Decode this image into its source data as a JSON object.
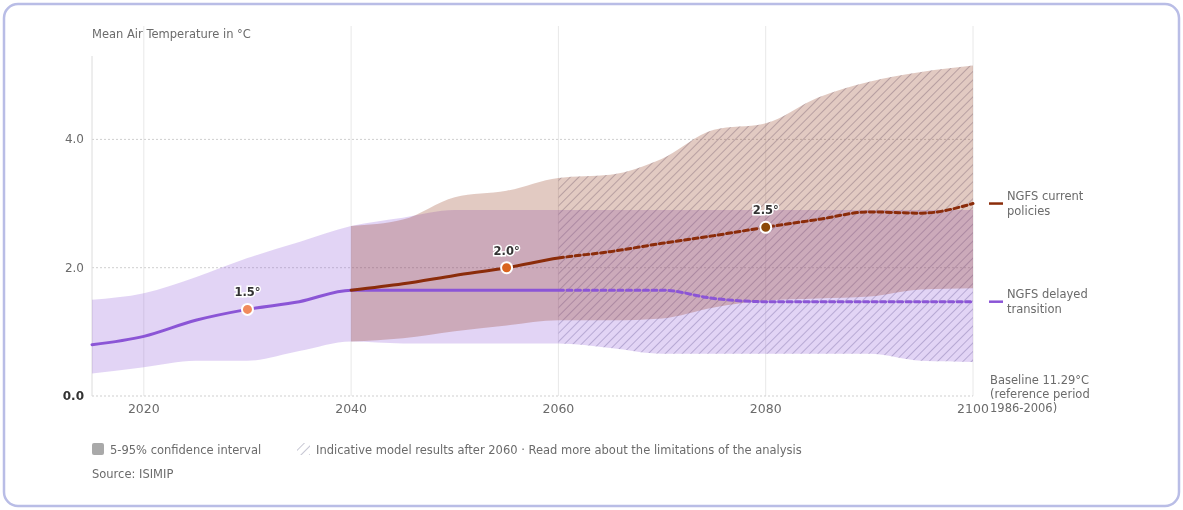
{
  "chart_data": {
    "type": "line",
    "ylabel": "Mean Air Temperature in °C",
    "xlim": [
      2015,
      2100
    ],
    "xticks": [
      2020,
      2040,
      2060,
      2080,
      2100
    ],
    "ylim": [
      0,
      5.3
    ],
    "yticks": [
      {
        "value": 0,
        "label": "0.0"
      },
      {
        "value": 2,
        "label": "2.0"
      },
      {
        "value": 4,
        "label": "4.0"
      }
    ],
    "grid": true,
    "legend": "right",
    "series": [
      {
        "name": "NGFS delayed transition",
        "color": "#8b55d6",
        "line_style": "dashed",
        "x": [
          2015,
          2020,
          2025,
          2030,
          2035,
          2040,
          2045,
          2050,
          2055,
          2060,
          2065,
          2070,
          2075,
          2080,
          2085,
          2090,
          2095,
          2100
        ],
        "values": [
          0.8,
          0.93,
          1.18,
          1.35,
          1.47,
          1.65,
          1.65,
          1.65,
          1.65,
          1.65,
          1.65,
          1.65,
          1.52,
          1.47,
          1.47,
          1.47,
          1.47,
          1.47
        ],
        "lower": [
          0.35,
          0.45,
          0.55,
          0.55,
          0.7,
          0.85,
          0.82,
          0.82,
          0.82,
          0.82,
          0.75,
          0.66,
          0.66,
          0.66,
          0.66,
          0.66,
          0.55,
          0.53
        ],
        "upper": [
          1.5,
          1.6,
          1.85,
          2.15,
          2.4,
          2.65,
          2.78,
          2.9,
          2.9,
          2.9,
          2.9,
          2.9,
          2.9,
          2.9,
          2.9,
          2.9,
          2.9,
          2.9
        ]
      },
      {
        "name": "NGFS current policies",
        "color": "#8b2c0a",
        "line_style": "dashed",
        "x": [
          2040,
          2045,
          2050,
          2055,
          2060,
          2065,
          2070,
          2075,
          2080,
          2085,
          2090,
          2095,
          2100
        ],
        "values": [
          1.65,
          1.75,
          1.88,
          2.0,
          2.15,
          2.25,
          2.38,
          2.5,
          2.63,
          2.75,
          2.87,
          2.85,
          3.0
        ],
        "lower": [
          0.85,
          0.9,
          1.01,
          1.1,
          1.18,
          1.18,
          1.21,
          1.38,
          1.49,
          1.52,
          1.55,
          1.66,
          1.68
        ],
        "upper": [
          2.65,
          2.75,
          3.1,
          3.2,
          3.4,
          3.45,
          3.7,
          4.15,
          4.25,
          4.65,
          4.9,
          5.05,
          5.15
        ]
      },
      {
        "type": "scatter",
        "x": [
          2030,
          2055,
          2080
        ],
        "values": [
          1.35,
          2.0,
          2.63
        ],
        "colors": [
          "#f08a5d",
          "#d9641e",
          "#8b4a0a"
        ]
      }
    ],
    "bands": [
      {
        "axis": "x",
        "from": 2060,
        "to": 2100,
        "label": "Indicative model results after 2060 · Read more about the limitations of the analysis",
        "color": "#b8b8c8"
      }
    ],
    "annotations": [
      "Baseline 11.29°C (reference period 1986-2006)",
      "5-95% confidence interval",
      "Source: ISIMIP",
      {
        "text": "1.5°",
        "x": 2030,
        "y": 1.35
      },
      {
        "text": "2.0°",
        "x": 2055,
        "y": 2.0
      },
      {
        "text": "2.5°",
        "x": 2080,
        "y": 2.63
      }
    ]
  }
}
